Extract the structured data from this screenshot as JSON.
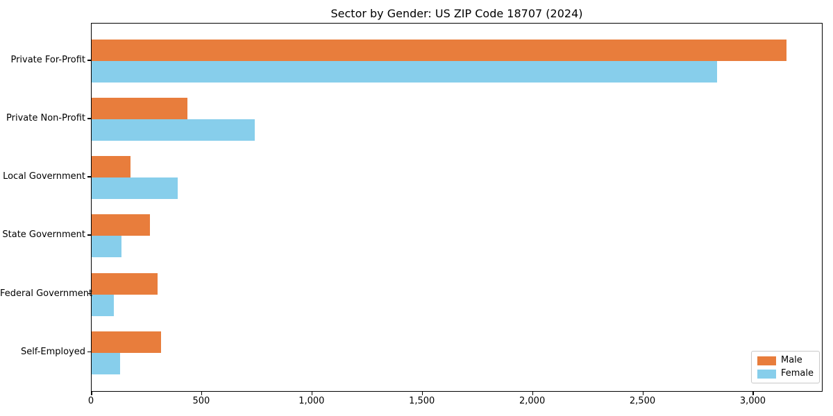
{
  "chart_data": {
    "type": "bar",
    "orientation": "horizontal",
    "title": "Sector by Gender: US ZIP Code 18707 (2024)",
    "categories": [
      "Private For-Profit",
      "Private Non-Profit",
      "Local Government",
      "State Government",
      "Federal Government",
      "Self-Employed"
    ],
    "series": [
      {
        "name": "Male",
        "color": "#e87d3c",
        "values": [
          3150,
          435,
          175,
          265,
          300,
          315
        ]
      },
      {
        "name": "Female",
        "color": "#87ceeb",
        "values": [
          2835,
          740,
          390,
          135,
          100,
          130
        ]
      }
    ],
    "xlabel": "",
    "ylabel": "",
    "xlim": [
      0,
      3307
    ],
    "x_ticks": [
      0,
      500,
      1000,
      1500,
      2000,
      2500,
      3000
    ],
    "x_tick_labels": [
      "0",
      "500",
      "1,000",
      "1,500",
      "2,000",
      "2,500",
      "3,000"
    ],
    "grid": false,
    "legend_position": "lower right",
    "background": "#ffffff",
    "axis_color": "#000000"
  }
}
